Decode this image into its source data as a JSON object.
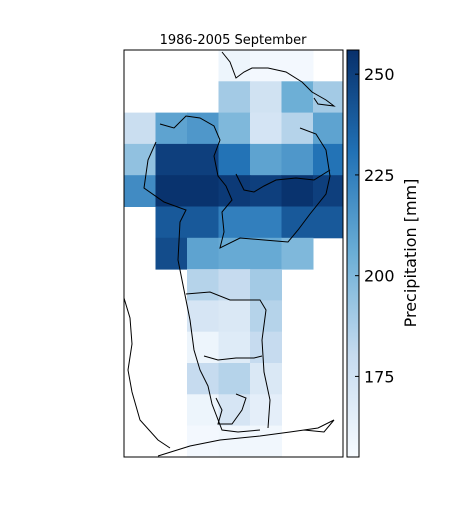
{
  "chart_data": {
    "type": "heatmap",
    "title": "1986-2005 September",
    "colorbar": {
      "label": "Precipitation [mm]",
      "range": [
        155,
        256
      ],
      "ticks": [
        175,
        200,
        225,
        250
      ],
      "tick_labels": [
        "175",
        "200",
        "225",
        "250"
      ],
      "colormap": "Blues"
    },
    "grid": {
      "columns": 7,
      "rows": 13
    },
    "values": [
      [
        null,
        null,
        null,
        160,
        157,
        157,
        null
      ],
      [
        null,
        null,
        null,
        190,
        175,
        205,
        190
      ],
      [
        178,
        210,
        215,
        200,
        173,
        185,
        210
      ],
      [
        195,
        250,
        250,
        230,
        210,
        215,
        230
      ],
      [
        220,
        255,
        255,
        252,
        250,
        255,
        250
      ],
      [
        null,
        240,
        240,
        225,
        225,
        240,
        240
      ],
      [
        null,
        245,
        210,
        207,
        207,
        200,
        null
      ],
      [
        null,
        null,
        185,
        180,
        190,
        null,
        null
      ],
      [
        null,
        null,
        172,
        170,
        185,
        null,
        null
      ],
      [
        null,
        null,
        160,
        168,
        180,
        null,
        null
      ],
      [
        null,
        null,
        180,
        185,
        170,
        null,
        null
      ],
      [
        null,
        null,
        160,
        172,
        165,
        null,
        null
      ],
      [
        null,
        null,
        157,
        158,
        158,
        null,
        null
      ]
    ],
    "grid_lines": false
  }
}
